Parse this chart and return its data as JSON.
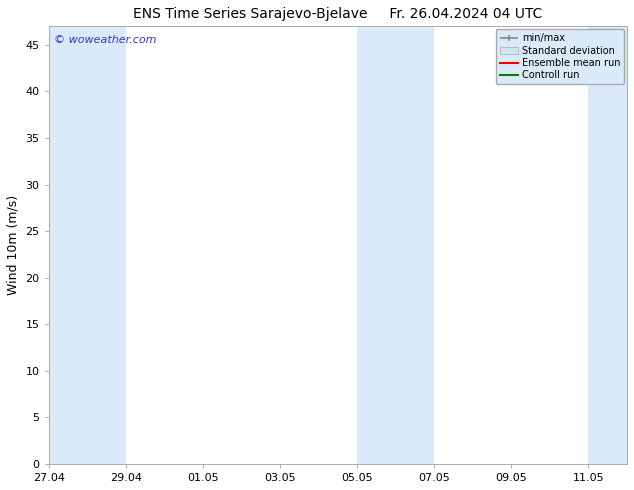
{
  "title_left": "ENS Time Series Sarajevo-Bjelave",
  "title_right": "Fr. 26.04.2024 04 UTC",
  "ylabel": "Wind 10m (m/s)",
  "watermark": "© woweather.com",
  "ylim": [
    0,
    47
  ],
  "yticks": [
    0,
    5,
    10,
    15,
    20,
    25,
    30,
    35,
    40,
    45
  ],
  "xtick_labels": [
    "27.04",
    "29.04",
    "01.05",
    "03.05",
    "05.05",
    "07.05",
    "09.05",
    "11.05"
  ],
  "xtick_positions": [
    0,
    2,
    4,
    6,
    8,
    10,
    12,
    14
  ],
  "xlim": [
    0,
    15
  ],
  "bg_color": "#ffffff",
  "plot_bg_color": "#ffffff",
  "shaded_bands": [
    {
      "x_start": 0,
      "x_end": 2,
      "color": "#daeaf8"
    },
    {
      "x_start": 8,
      "x_end": 10,
      "color": "#daeaf8"
    },
    {
      "x_start": 14,
      "x_end": 15,
      "color": "#daeaf8"
    }
  ],
  "legend_items": [
    {
      "label": "min/max",
      "color": "#aaaaaa",
      "type": "line_with_caps"
    },
    {
      "label": "Standard deviation",
      "color": "#d0e4f4",
      "type": "filled_rect"
    },
    {
      "label": "Ensemble mean run",
      "color": "#ff0000",
      "type": "line"
    },
    {
      "label": "Controll run",
      "color": "#008000",
      "type": "line"
    }
  ],
  "legend_bg_color": "#daeaf8",
  "legend_edge_color": "#aaaaaa",
  "title_fontsize": 10,
  "axis_label_fontsize": 9,
  "tick_fontsize": 8,
  "watermark_color": "#3333cc",
  "watermark_fontsize": 8,
  "grid_color": "#dddddd",
  "spine_color": "#aaaaaa"
}
